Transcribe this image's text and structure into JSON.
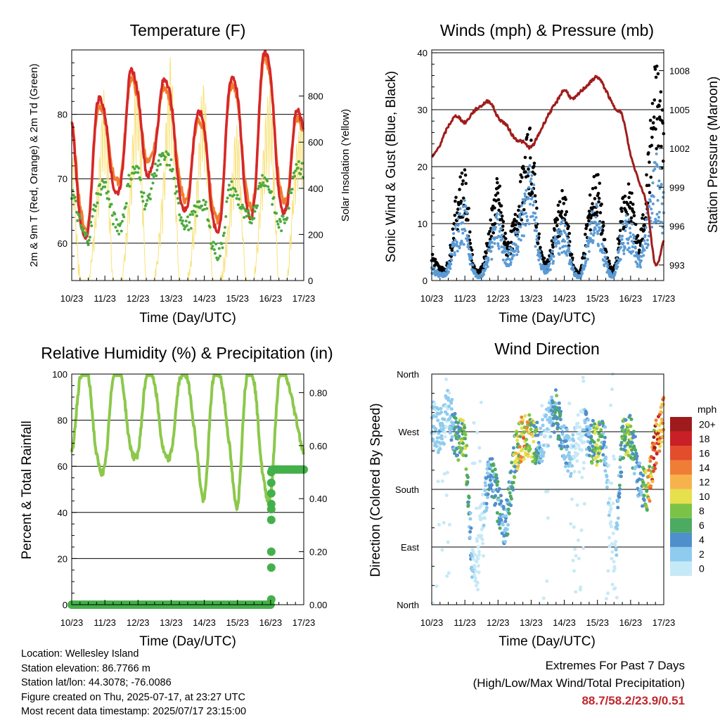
{
  "panels": {
    "temperature": {
      "title": "Temperature (F)",
      "xlabel": "Time (Day/UTC)",
      "ylabel": "2m & 9m T (Red, Orange) & 2m Td (Green)",
      "ylabel_right": "Solar Insolation (Yellow)",
      "y_ticks": [
        "60",
        "70",
        "80"
      ],
      "y_right_ticks": [
        "0",
        "200",
        "400",
        "600",
        "800"
      ]
    },
    "winds": {
      "title": "Winds (mph) & Pressure (mb)",
      "xlabel": "Time (Day/UTC)",
      "ylabel": "Sonic Wind & Gust (Blue, Black)",
      "ylabel_right": "Station Pressure (Maroon)",
      "y_ticks": [
        "0",
        "10",
        "20",
        "30",
        "40"
      ],
      "y_right_ticks": [
        "993",
        "996",
        "999",
        "1002",
        "1005",
        "1008"
      ]
    },
    "humidity": {
      "title": "Relative Humidity (%) & Precipitation (in)",
      "xlabel": "Time (Day/UTC)",
      "ylabel": "Percent & Total Rainfall",
      "y_ticks": [
        "0",
        "20",
        "40",
        "60",
        "80",
        "100"
      ],
      "y_right_ticks": [
        "0.00",
        "0.20",
        "0.40",
        "0.60",
        "0.80"
      ]
    },
    "direction": {
      "title": "Wind Direction",
      "xlabel": "Time (Day/UTC)",
      "ylabel": "Direction (Colored By Speed)",
      "y_ticks": [
        "North",
        "East",
        "South",
        "West",
        "North"
      ],
      "colorbar_title": "mph",
      "colorbar_labels": [
        "0",
        "2",
        "4",
        "6",
        "8",
        "10",
        "12",
        "14",
        "16",
        "18",
        "20+"
      ],
      "colorbar_colors": [
        "#c6e9f7",
        "#8fcbee",
        "#4f8fcb",
        "#4daa61",
        "#7bc347",
        "#e5e04b",
        "#f8b24b",
        "#f07d35",
        "#e34d2b",
        "#c92027",
        "#9e1a1c"
      ]
    }
  },
  "x_ticks": [
    "10/23",
    "11/23",
    "12/23",
    "13/23",
    "14/23",
    "15/23",
    "16/23",
    "17/23"
  ],
  "colors": {
    "temp_2m": "#d62728",
    "temp_9m": "#f07d30",
    "dewpoint": "#4daa3c",
    "solar": "#f8e27a",
    "wind": "#5b9bd5",
    "gust": "#000000",
    "pressure": "#a01c1c",
    "rh": "#8cc84b",
    "precip": "#44b04a"
  },
  "info": {
    "location": "Location: Wellesley Island",
    "elevation": "Station elevation: 86.7766 m",
    "latlon": "Station lat/lon: 44.3078; -76.0086",
    "created": "Figure created on Thu, 2025-07-17, at 23:27 UTC",
    "timestamp": "Most recent data timestamp: 2025/07/17 23:15:00"
  },
  "extremes": {
    "title": "Extremes For Past 7 Days",
    "subtitle": "(High/Low/Max Wind/Total Precipitation)",
    "values": "88.7/58.2/23.9/0.51"
  },
  "chart_data": [
    {
      "type": "line",
      "title": "Temperature (F)",
      "xlabel": "Time (Day/UTC)",
      "ylabel": "2m & 9m T (Red, Orange) & 2m Td (Green)",
      "ylabel_right": "Solar Insolation (Yellow)",
      "x": [
        0,
        0.25,
        0.5,
        0.75,
        1,
        1.25,
        1.5,
        1.75,
        2,
        2.25,
        2.5,
        2.75,
        3,
        3.25,
        3.5,
        3.75,
        4,
        4.25,
        4.5,
        4.75,
        5,
        5.25,
        5.5,
        5.75,
        6,
        6.25,
        6.5,
        6.75,
        7
      ],
      "ylim": [
        55,
        80
      ],
      "ylim_right": [
        0,
        1000
      ],
      "series": [
        {
          "values": [
            79,
            64,
            62,
            81,
            80,
            69,
            70,
            86,
            83,
            71,
            74,
            85,
            82,
            68,
            66,
            79,
            78,
            64,
            64,
            84,
            83,
            67,
            66,
            88,
            86,
            68,
            66,
            80,
            78
          ]
        },
        {
          "values": [
            79,
            66,
            63,
            80,
            79,
            71,
            71,
            85,
            82,
            73,
            75,
            84,
            81,
            70,
            67,
            78,
            77,
            66,
            65,
            83,
            82,
            69,
            67,
            87,
            85,
            70,
            67,
            79,
            77
          ]
        },
        {
          "values": [
            68,
            63,
            61,
            67,
            69,
            64,
            63,
            70,
            71,
            66,
            71,
            73,
            72,
            65,
            63,
            65,
            66,
            60,
            59,
            68,
            67,
            64,
            65,
            70,
            68,
            63,
            65,
            72,
            71
          ]
        },
        {
          "axis": "right",
          "values": [
            600,
            0,
            0,
            350,
            800,
            0,
            0,
            400,
            880,
            0,
            0,
            420,
            950,
            0,
            0,
            380,
            850,
            0,
            0,
            300,
            650,
            0,
            0,
            500,
            800,
            0,
            0,
            550,
            700
          ]
        }
      ]
    },
    {
      "type": "scatter",
      "title": "Winds (mph) & Pressure (mb)",
      "xlabel": "Time (Day/UTC)",
      "ylabel": "Sonic Wind & Gust (Blue, Black)",
      "ylabel_right": "Station Pressure (Maroon)",
      "x": [
        0,
        0.25,
        0.5,
        0.75,
        1,
        1.25,
        1.5,
        1.75,
        2,
        2.25,
        2.5,
        2.75,
        3,
        3.25,
        3.5,
        3.75,
        4,
        4.25,
        4.5,
        4.75,
        5,
        5.25,
        5.5,
        5.75,
        6,
        6.25,
        6.5,
        6.75,
        7
      ],
      "ylim": [
        0,
        40
      ],
      "ylim_right": [
        992,
        1009
      ],
      "series": [
        {
          "values": [
            2,
            1,
            2,
            8,
            10,
            2,
            1,
            5,
            9,
            4,
            6,
            11,
            15,
            4,
            2,
            6,
            8,
            2,
            1,
            7,
            10,
            3,
            1,
            7,
            8,
            3,
            9,
            17,
            12
          ]
        },
        {
          "values": [
            4,
            2,
            3,
            12,
            15,
            3,
            2,
            8,
            14,
            6,
            9,
            16,
            21,
            6,
            3,
            9,
            12,
            3,
            2,
            11,
            15,
            5,
            2,
            11,
            13,
            6,
            16,
            30,
            25
          ]
        },
        {
          "axis": "right",
          "values": [
            1001.3,
            1002.3,
            1003.7,
            1004.5,
            1004,
            1004.8,
            1005.3,
            1005.6,
            1004.4,
            1003.8,
            1002.8,
            1002.5,
            1002.1,
            1003.2,
            1004.5,
            1005.5,
            1006.5,
            1005.8,
            1006.4,
            1007,
            1007.5,
            1006.5,
            1005.2,
            1004.5,
            1001.5,
            999.5,
            997.5,
            993,
            994.8
          ]
        }
      ]
    },
    {
      "type": "line",
      "title": "Relative Humidity (%) & Precipitation (in)",
      "xlabel": "Time (Day/UTC)",
      "ylabel": "Percent & Total Rainfall",
      "x": [
        0,
        0.25,
        0.5,
        0.75,
        1,
        1.25,
        1.5,
        1.75,
        2,
        2.25,
        2.5,
        2.75,
        3,
        3.25,
        3.5,
        3.75,
        4,
        4.25,
        4.5,
        4.75,
        5,
        5.25,
        5.5,
        5.75,
        6,
        6.25,
        6.5,
        6.75,
        7
      ],
      "ylim": [
        0,
        100
      ],
      "ylim_right": [
        0,
        0.86
      ],
      "series": [
        {
          "values": [
            65,
            98,
            99,
            65,
            60,
            99,
            99,
            70,
            66,
            99,
            96,
            68,
            66,
            97,
            97,
            70,
            46,
            96,
            98,
            70,
            43,
            96,
            97,
            58,
            48,
            98,
            97,
            82,
            66
          ]
        },
        {
          "axis": "right",
          "values": [
            0,
            0,
            0,
            0,
            0,
            0,
            0,
            0,
            0,
            0,
            0,
            0,
            0,
            0,
            0,
            0,
            0,
            0,
            0,
            0,
            0,
            0,
            0,
            0,
            0,
            0.51,
            0.51,
            0.51,
            0.51
          ]
        }
      ]
    },
    {
      "type": "scatter",
      "title": "Wind Direction",
      "xlabel": "Time (Day/UTC)",
      "ylabel": "Direction (Colored By Speed)",
      "y_categories": [
        "North",
        "East",
        "South",
        "West",
        "North"
      ],
      "x": [
        0,
        0.25,
        0.5,
        0.75,
        1,
        1.25,
        1.5,
        1.75,
        2,
        2.25,
        2.5,
        2.75,
        3,
        3.25,
        3.5,
        3.75,
        4,
        4.25,
        4.5,
        4.75,
        5,
        5.25,
        5.5,
        5.75,
        6,
        6.25,
        6.5,
        6.75,
        7
      ],
      "ylim": [
        0,
        360
      ],
      "series": [
        {
          "values": [
            290,
            270,
            300,
            260,
            250,
            60,
            120,
            200,
            160,
            130,
            230,
            260,
            260,
            250,
            280,
            300,
            250,
            230,
            280,
            260,
            250,
            240,
            80,
            250,
            260,
            200,
            180,
            250,
            290
          ]
        },
        {
          "values": [
            2,
            3,
            2,
            6,
            9,
            2,
            1,
            5,
            6,
            4,
            8,
            12,
            10,
            4,
            2,
            6,
            4,
            2,
            1,
            5,
            9,
            3,
            1,
            7,
            8,
            4,
            10,
            16,
            12
          ]
        }
      ]
    }
  ]
}
